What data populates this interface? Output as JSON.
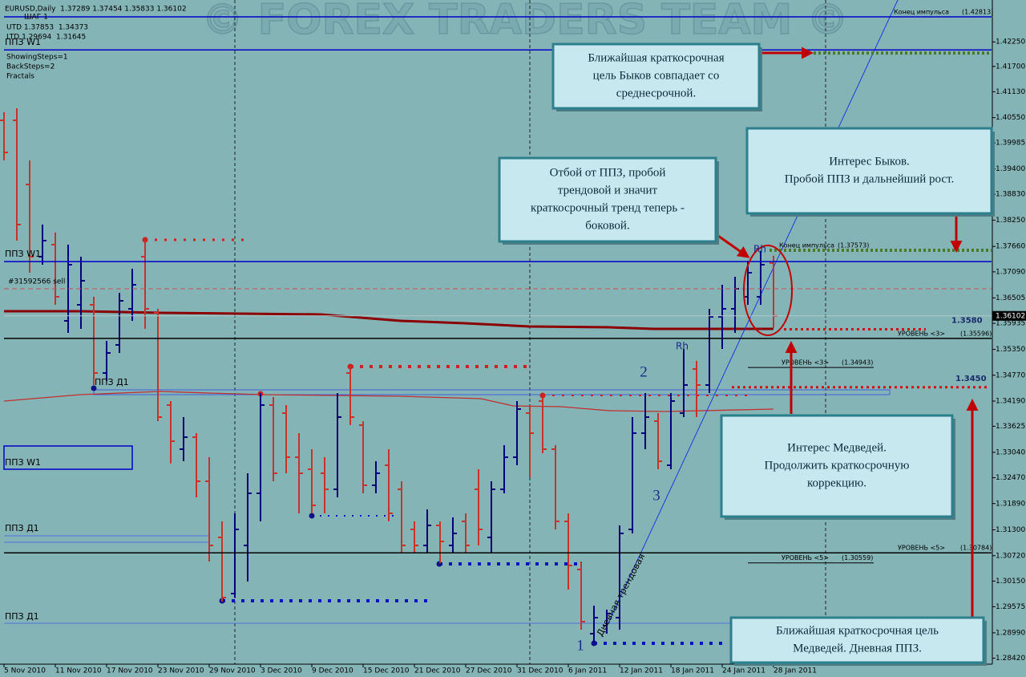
{
  "chart_data": {
    "type": "ohlc",
    "categories": [
      "5 Nov 2010",
      null,
      null,
      null,
      "11 Nov 2010",
      null,
      null,
      null,
      "17 Nov 2010",
      null,
      null,
      null,
      "23 Nov 2010",
      null,
      null,
      null,
      "29 Nov 2010",
      null,
      null,
      null,
      "3 Dec 2010",
      null,
      null,
      null,
      "9 Dec 2010",
      null,
      null,
      null,
      "15 Dec 2010",
      null,
      null,
      null,
      "21 Dec 2010",
      null,
      null,
      null,
      "27 Dec 2010",
      null,
      null,
      null,
      "31 Dec 2010",
      null,
      null,
      null,
      "6 Jan 2011",
      null,
      null,
      null,
      "12 Jan 2011",
      null,
      null,
      null,
      "18 Jan 2011",
      null,
      null,
      null,
      "24 Jan 2011",
      null,
      null,
      null,
      "28 Jan 2011"
    ],
    "open": [
      1.4049,
      1.4049,
      1.3905,
      1.3743,
      1.377,
      1.3599,
      1.3635,
      1.3635,
      1.3482,
      1.3545,
      1.3626,
      1.3743,
      1.3617,
      1.341,
      1.3311,
      1.3338,
      1.3239,
      1.3113,
      1.2987,
      1.3095,
      1.3212,
      1.341,
      1.3392,
      1.3293,
      1.3266,
      1.3257,
      1.3221,
      1.3482,
      1.3365,
      1.323,
      1.3275,
      1.3221,
      1.3131,
      1.3095,
      1.314,
      1.3095,
      1.3149,
      1.3221,
      1.3113,
      1.3221,
      1.3293,
      1.3392,
      1.3419,
      1.3311,
      1.3149,
      1.3041,
      1.2897,
      1.2915,
      1.2933,
      1.3131,
      1.3347,
      1.3374,
      1.3275,
      1.3392,
      1.3491,
      1.3455,
      1.3608,
      1.3626,
      1.3653,
      1.3653,
      1.37289
    ],
    "high": [
      1.4067,
      1.4076,
      1.3959,
      1.3815,
      1.3797,
      1.377,
      1.3743,
      1.3653,
      1.3554,
      1.3662,
      1.3716,
      1.3779,
      1.3626,
      1.3419,
      1.3383,
      1.3347,
      1.3293,
      1.3149,
      1.3167,
      1.3257,
      1.3437,
      1.3428,
      1.341,
      1.3347,
      1.3311,
      1.3293,
      1.3437,
      1.3496,
      1.3374,
      1.3284,
      1.3311,
      1.3239,
      1.3149,
      1.3176,
      1.3149,
      1.3158,
      1.3167,
      1.3266,
      1.3239,
      1.332,
      1.3419,
      1.341,
      1.3428,
      1.332,
      1.3167,
      1.3059,
      1.296,
      1.2951,
      1.314,
      1.3383,
      1.3437,
      1.3392,
      1.3437,
      1.3536,
      1.3509,
      1.3626,
      1.368,
      1.3698,
      1.3734,
      1.3756,
      1.37454
    ],
    "low": [
      1.3959,
      1.3779,
      1.3707,
      1.3725,
      1.3635,
      1.3572,
      1.3581,
      1.3455,
      1.3464,
      1.3527,
      1.3599,
      1.3581,
      1.3374,
      1.3279,
      1.3284,
      1.3203,
      1.3059,
      1.2969,
      1.2978,
      1.3014,
      1.3149,
      1.3239,
      1.3257,
      1.3167,
      1.3167,
      1.3167,
      1.3203,
      1.3365,
      1.3212,
      1.3212,
      1.3149,
      1.3077,
      1.3077,
      1.3077,
      1.3055,
      1.3077,
      1.3077,
      1.3095,
      1.3077,
      1.3212,
      1.3275,
      1.3248,
      1.3302,
      1.3131,
      1.2996,
      1.2906,
      1.2879,
      1.2897,
      1.2906,
      1.3122,
      1.3311,
      1.3266,
      1.3266,
      1.3383,
      1.3383,
      1.3437,
      1.3536,
      1.3572,
      1.3635,
      1.3635,
      1.35833
    ],
    "close": [
      1.3977,
      1.3815,
      1.3743,
      1.3779,
      1.3653,
      1.3725,
      1.3689,
      1.3482,
      1.3527,
      1.3644,
      1.368,
      1.3626,
      1.3383,
      1.3329,
      1.3338,
      1.3239,
      1.3095,
      1.2978,
      1.3131,
      1.3212,
      1.341,
      1.3257,
      1.3293,
      1.3257,
      1.3185,
      1.3221,
      1.3383,
      1.3383,
      1.323,
      1.3257,
      1.3167,
      1.3095,
      1.3095,
      1.314,
      1.3104,
      1.3122,
      1.3095,
      1.3131,
      1.3221,
      1.3293,
      1.3401,
      1.3347,
      1.3311,
      1.3149,
      1.305,
      1.2924,
      1.2933,
      1.2942,
      1.3122,
      1.3347,
      1.3383,
      1.3284,
      1.3419,
      1.3455,
      1.3455,
      1.3608,
      1.3626,
      1.3671,
      1.3707,
      1.3725,
      1.36102
    ],
    "up_color": "#00007a",
    "down_color": "#c83228",
    "ylim": [
      1.28286,
      1.4319
    ],
    "yticks": [
      {
        "value": 1.4225,
        "label": "1.42250"
      },
      {
        "value": 1.417,
        "label": "1.41700"
      },
      {
        "value": 1.4113,
        "label": "1.41130"
      },
      {
        "value": 1.4055,
        "label": "1.40550"
      },
      1.39985,
      {
        "value": 1.394,
        "label": "1.39400"
      },
      {
        "value": 1.3883,
        "label": "1.38830"
      },
      {
        "value": 1.3825,
        "label": "1.38250"
      },
      {
        "value": 1.3766,
        "label": "1.37660"
      },
      {
        "value": 1.3709,
        "label": "1.37090"
      },
      1.36505,
      1.35935,
      {
        "value": 1.3535,
        "label": "1.35350"
      },
      {
        "value": 1.3477,
        "label": "1.34770"
      },
      {
        "value": 1.3419,
        "label": "1.34190"
      },
      1.33625,
      {
        "value": 1.3304,
        "label": "1.33040"
      },
      {
        "value": 1.3247,
        "label": "1.32470"
      },
      {
        "value": 1.3189,
        "label": "1.31890"
      },
      {
        "value": 1.313,
        "label": "1.31300"
      },
      {
        "value": 1.3072,
        "label": "1.30720"
      },
      {
        "value": 1.3015,
        "label": "1.30150"
      },
      1.29575,
      {
        "value": 1.2899,
        "label": "1.28990"
      },
      {
        "value": 1.2842,
        "label": "1.28420"
      }
    ],
    "current_price": 1.36102,
    "levels": [
      {
        "name": "Конец импульса",
        "value": 1.42813,
        "value_label": "(1.42813)",
        "color": "#0000c8"
      },
      {
        "name": "ППЗ W1",
        "value": 1.4207,
        "color": "#0000c8"
      },
      {
        "name": "ППЗ W1",
        "value": 1.3732,
        "color": "#0000c8"
      },
      {
        "name": "#31592566 sell",
        "value": 1.3671,
        "color": "#c85050"
      },
      {
        "name": "Конец импульса",
        "value": 1.37573,
        "value_label": "(1.37573)",
        "color": "#4a7a2a"
      },
      {
        "name": "УРОВЕНЬ <3>",
        "value": 1.35596,
        "value_label": "(1.35596)",
        "color": "#000000"
      },
      {
        "name": "УРОВЕНЬ <3>",
        "value": 1.34943,
        "value_label": "(1.34943)",
        "color": "#000000"
      },
      {
        "name": "УРОВЕНЬ <5>",
        "value": 1.30784,
        "value_label": "(1.30784)",
        "color": "#000000"
      },
      {
        "name": "УРОВЕНЬ <5>",
        "value": 1.30559,
        "value_label": "(1.30559)",
        "color": "#000000"
      },
      {
        "value": 1.358,
        "value_label": "1.3580",
        "color": "#d01010"
      },
      {
        "value": 1.345,
        "value_label": "1.3450",
        "color": "#d01010"
      },
      {
        "value": 1.42,
        "color": "#4a7a2a"
      }
    ]
  },
  "overlay": {
    "watermark": "© FOREX TRADERS TEAM ©",
    "header": [
      "EURUSD,Daily  1.37289 1.37454 1.35833 1.36102",
      "ШАГ 1",
      "UTD 1.37853  1.34373",
      "LTD 1.29694  1.31645",
      "ShowingSteps=1",
      "BackSteps=2",
      "Fractals"
    ],
    "zone_labels": [
      "ППЗ Д1",
      "ППЗ W1",
      "ППЗ Д1",
      "ППЗ Д1"
    ],
    "markers": [
      "Rh",
      "Rh",
      "1",
      "2",
      "3"
    ],
    "trend_label": "Дневная трендовая",
    "annotations": [
      {
        "lines": [
          "Ближайшая краткосрочная",
          "цель Быков совпадает со",
          "среднесрочной."
        ]
      },
      {
        "lines": [
          "Отбой от ППЗ, пробой",
          "трендовой и значит",
          "краткосрочный тренд теперь -",
          "боковой."
        ]
      },
      {
        "lines": [
          "Интерес Быков.",
          "Пробой ППЗ и дальнейший рост."
        ]
      },
      {
        "lines": [
          "Интерес Медведей.",
          "Продолжить краткосрочную",
          "коррекцию."
        ]
      },
      {
        "lines": [
          "Ближайшая краткосрочная цель",
          "Медведей. Дневная ППЗ."
        ]
      }
    ]
  }
}
